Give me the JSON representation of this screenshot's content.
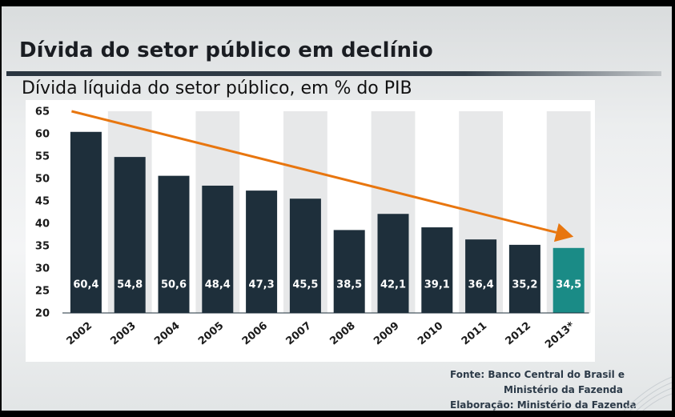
{
  "slide": {
    "title": "Dívida do setor público em declínio",
    "subtitle": "Dívida líquida do setor público, em % do PIB",
    "source_line1": "Fonte:  Banco Central do Brasil e",
    "source_line2": "Ministério da Fazenda",
    "source_line3": "Elaboração: Ministério da Fazenda"
  },
  "colors": {
    "bar": "#1e2f3b",
    "bar_highlight": "#1a8b86",
    "column_stripe": "#e7e8e9",
    "trend_arrow": "#e8760f",
    "title_rule": "#2a3540"
  },
  "chart_data": {
    "type": "bar",
    "title": "Dívida líquida do setor público, em % do PIB",
    "categories": [
      "2002",
      "2003",
      "2004",
      "2005",
      "2006",
      "2007",
      "2008",
      "2009",
      "2010",
      "2011",
      "2012",
      "2013*"
    ],
    "values": [
      60.4,
      54.8,
      50.6,
      48.4,
      47.3,
      45.5,
      38.5,
      42.1,
      39.1,
      36.4,
      35.2,
      34.5
    ],
    "value_labels": [
      "60,4",
      "54,8",
      "50,6",
      "48,4",
      "47,3",
      "45,5",
      "38,5",
      "42,1",
      "39,1",
      "36,4",
      "35,2",
      "34,5"
    ],
    "highlight_index": 11,
    "ylim": [
      20,
      65
    ],
    "yticks": [
      20,
      25,
      30,
      35,
      40,
      45,
      50,
      55,
      60,
      65
    ],
    "xlabel": "",
    "ylabel": "",
    "grid": false,
    "legend": "none",
    "trend_arrow": {
      "from": [
        2002,
        65
      ],
      "to": [
        2013,
        37
      ]
    }
  }
}
